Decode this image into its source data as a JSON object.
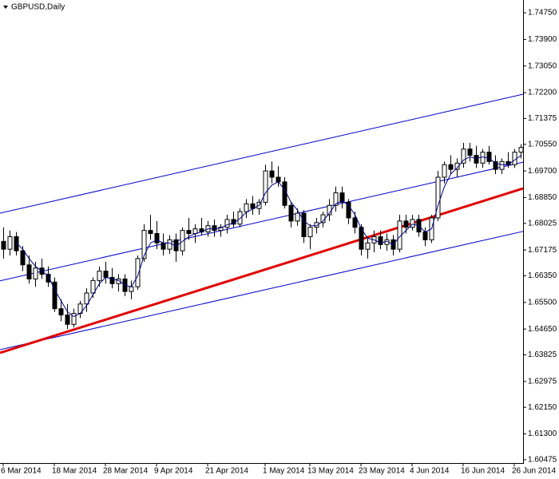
{
  "chart_data": {
    "type": "candlestick",
    "title": "GBPUSD,Daily",
    "categories": [
      "6 Mar 2014",
      null,
      null,
      null,
      null,
      null,
      null,
      null,
      "18 Mar 2014",
      null,
      null,
      null,
      null,
      null,
      null,
      null,
      "28 Mar 2014",
      null,
      null,
      null,
      null,
      null,
      null,
      null,
      "9 Apr 2014",
      null,
      null,
      null,
      null,
      null,
      null,
      null,
      "21 Apr 2014",
      null,
      null,
      null,
      null,
      null,
      null,
      null,
      null,
      "1 May 2014",
      null,
      null,
      null,
      null,
      null,
      null,
      "13 May 2014",
      null,
      null,
      null,
      null,
      null,
      null,
      null,
      "23 May 2014",
      null,
      null,
      null,
      null,
      null,
      null,
      null,
      "4 Jun 2014",
      null,
      null,
      null,
      null,
      null,
      null,
      null,
      "16 Jun 2014",
      null,
      null,
      null,
      null,
      null,
      null,
      null,
      "26 Jun 2014",
      null
    ],
    "open": [
      1.6745,
      1.672,
      1.676,
      1.6715,
      1.667,
      1.6625,
      1.666,
      1.664,
      1.6615,
      1.653,
      1.651,
      1.648,
      1.6515,
      1.6545,
      1.658,
      1.662,
      1.665,
      1.663,
      1.661,
      1.6625,
      1.6585,
      1.66,
      1.669,
      1.678,
      1.677,
      1.674,
      1.672,
      1.675,
      1.6715,
      1.678,
      1.677,
      1.6785,
      1.6775,
      1.6795,
      1.678,
      1.679,
      1.6815,
      1.68,
      1.684,
      1.6865,
      1.685,
      1.687,
      1.697,
      1.695,
      1.6935,
      1.686,
      1.681,
      1.6835,
      1.676,
      1.679,
      1.6805,
      1.683,
      1.686,
      1.69,
      1.687,
      1.682,
      1.679,
      1.672,
      1.674,
      1.676,
      1.6735,
      1.675,
      1.672,
      1.681,
      1.679,
      1.6815,
      1.6775,
      1.675,
      1.682,
      1.695,
      1.699,
      1.6975,
      1.6995,
      1.704,
      1.702,
      1.6995,
      1.703,
      1.7,
      1.6975,
      1.7,
      1.699,
      1.703
    ],
    "high": [
      1.679,
      1.678,
      1.6775,
      1.673,
      1.67,
      1.668,
      1.669,
      1.6665,
      1.663,
      1.656,
      1.6545,
      1.653,
      1.6555,
      1.6595,
      1.663,
      1.6665,
      1.668,
      1.666,
      1.664,
      1.664,
      1.662,
      1.67,
      1.68,
      1.683,
      1.681,
      1.677,
      1.6765,
      1.677,
      1.679,
      1.682,
      1.68,
      1.682,
      1.681,
      1.6815,
      1.68,
      1.683,
      1.684,
      1.685,
      1.688,
      1.689,
      1.688,
      1.699,
      1.7,
      1.6985,
      1.695,
      1.687,
      1.685,
      1.6845,
      1.68,
      1.682,
      1.684,
      1.688,
      1.692,
      1.692,
      1.688,
      1.684,
      1.68,
      1.676,
      1.678,
      1.678,
      1.677,
      1.6765,
      1.683,
      1.683,
      1.683,
      1.683,
      1.679,
      1.683,
      1.697,
      1.7,
      1.702,
      1.701,
      1.706,
      1.706,
      1.705,
      1.704,
      1.705,
      1.702,
      1.701,
      1.703,
      1.704,
      1.7055
    ],
    "low": [
      1.669,
      1.67,
      1.67,
      1.665,
      1.661,
      1.66,
      1.6625,
      1.66,
      1.652,
      1.649,
      1.6465,
      1.647,
      1.65,
      1.652,
      1.6565,
      1.66,
      1.661,
      1.6595,
      1.6585,
      1.657,
      1.656,
      1.659,
      1.668,
      1.675,
      1.672,
      1.67,
      1.6705,
      1.668,
      1.67,
      1.675,
      1.674,
      1.6765,
      1.676,
      1.676,
      1.676,
      1.677,
      1.679,
      1.679,
      1.682,
      1.683,
      1.683,
      1.686,
      1.693,
      1.692,
      1.685,
      1.679,
      1.6795,
      1.674,
      1.672,
      1.677,
      1.679,
      1.681,
      1.684,
      1.685,
      1.68,
      1.677,
      1.67,
      1.669,
      1.671,
      1.672,
      1.6715,
      1.67,
      1.671,
      1.677,
      1.678,
      1.676,
      1.673,
      1.674,
      1.681,
      1.693,
      1.696,
      1.695,
      1.698,
      1.7,
      1.698,
      1.698,
      1.699,
      1.696,
      1.696,
      1.698,
      1.698,
      1.701
    ],
    "close": [
      1.672,
      1.676,
      1.6715,
      1.667,
      1.6625,
      1.666,
      1.664,
      1.6615,
      1.653,
      1.651,
      1.648,
      1.6515,
      1.6545,
      1.658,
      1.662,
      1.665,
      1.663,
      1.661,
      1.6625,
      1.6585,
      1.66,
      1.669,
      1.678,
      1.677,
      1.674,
      1.672,
      1.675,
      1.6715,
      1.678,
      1.677,
      1.6785,
      1.6775,
      1.6795,
      1.678,
      1.679,
      1.6815,
      1.68,
      1.684,
      1.6865,
      1.685,
      1.687,
      1.697,
      1.695,
      1.6935,
      1.686,
      1.681,
      1.6835,
      1.676,
      1.679,
      1.6805,
      1.683,
      1.686,
      1.69,
      1.687,
      1.682,
      1.679,
      1.672,
      1.674,
      1.676,
      1.6735,
      1.675,
      1.672,
      1.681,
      1.679,
      1.6815,
      1.6775,
      1.675,
      1.682,
      1.695,
      1.699,
      1.6975,
      1.6995,
      1.704,
      1.702,
      1.6995,
      1.703,
      1.7,
      1.6975,
      1.7,
      1.699,
      1.703,
      1.7045
    ],
    "ma": [
      null,
      null,
      1.674,
      1.672,
      1.669,
      1.6665,
      1.665,
      1.6635,
      1.659,
      1.6555,
      1.652,
      1.6505,
      1.6515,
      1.654,
      1.6575,
      1.661,
      1.663,
      1.6625,
      1.662,
      1.6605,
      1.66,
      1.6635,
      1.67,
      1.674,
      1.675,
      1.674,
      1.674,
      1.673,
      1.6745,
      1.676,
      1.677,
      1.6775,
      1.6785,
      1.6785,
      1.6788,
      1.6798,
      1.6803,
      1.6818,
      1.6838,
      1.6848,
      1.686,
      1.69,
      1.6925,
      1.6935,
      1.691,
      1.687,
      1.6845,
      1.681,
      1.6795,
      1.6795,
      1.681,
      1.6835,
      1.6865,
      1.6875,
      1.686,
      1.683,
      1.6785,
      1.6755,
      1.675,
      1.674,
      1.6745,
      1.6735,
      1.676,
      1.678,
      1.68,
      1.6795,
      1.6775,
      1.6785,
      1.686,
      1.692,
      1.696,
      1.698,
      1.7005,
      1.7015,
      1.701,
      1.7015,
      1.701,
      1.6995,
      1.699,
      1.699,
      1.7005,
      1.702
    ],
    "ma_color": "#000080",
    "bull_color": "#ffffff",
    "bear_color": "#000000",
    "trendlines": [
      {
        "color": "#0000cc",
        "start": 1.6835,
        "end": 1.7215
      },
      {
        "color": "#0000cc",
        "start": 1.6619,
        "end": 1.6998
      },
      {
        "color": "#0000cc",
        "start": 1.6399,
        "end": 1.6777
      },
      {
        "color": "#e00000",
        "start": 1.6389,
        "end": 1.6914
      }
    ],
    "ylim": [
      1.6037,
      1.7516
    ],
    "yticks": [
      {
        "value": 1.7475,
        "label": "1.74750"
      },
      {
        "value": 1.739,
        "label": "1.73900"
      },
      {
        "value": 1.7305,
        "label": "1.73050"
      },
      {
        "value": 1.722,
        "label": "1.72200"
      },
      {
        "value": 1.71375,
        "label": "1.71375"
      },
      {
        "value": 1.7055,
        "label": "1.70550"
      },
      {
        "value": 1.697,
        "label": "1.69700"
      },
      {
        "value": 1.6885,
        "label": "1.68850"
      },
      {
        "value": 1.68025,
        "label": "1.68025"
      },
      {
        "value": 1.67175,
        "label": "1.67175"
      },
      {
        "value": 1.6635,
        "label": "1.66350"
      },
      {
        "value": 1.655,
        "label": "1.65500"
      },
      {
        "value": 1.6465,
        "label": "1.64650"
      },
      {
        "value": 1.63825,
        "label": "1.63825"
      },
      {
        "value": 1.62975,
        "label": "1.62975"
      },
      {
        "value": 1.6215,
        "label": "1.62150"
      },
      {
        "value": 1.613,
        "label": "1.61300"
      },
      {
        "value": 1.60475,
        "label": "1.60475"
      }
    ]
  }
}
